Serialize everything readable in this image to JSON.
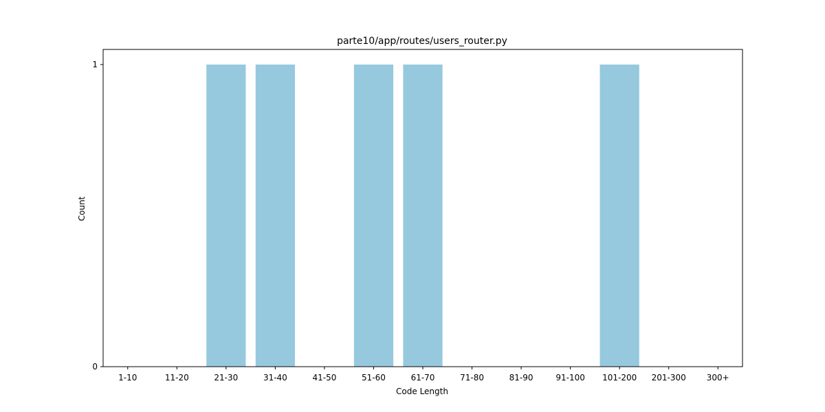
{
  "chart_data": {
    "type": "bar",
    "title": "parte10/app/routes/users_router.py",
    "xlabel": "Code Length",
    "ylabel": "Count",
    "categories": [
      "1-10",
      "11-20",
      "21-30",
      "31-40",
      "41-50",
      "51-60",
      "61-70",
      "71-80",
      "81-90",
      "91-100",
      "101-200",
      "201-300",
      "300+"
    ],
    "values": [
      0,
      0,
      1,
      1,
      0,
      1,
      1,
      0,
      0,
      0,
      1,
      0,
      0
    ],
    "ylim": [
      0,
      1.05
    ],
    "yticks": [
      0,
      1
    ],
    "bar_color": "#96c9de",
    "grid": false,
    "legend": "none"
  }
}
